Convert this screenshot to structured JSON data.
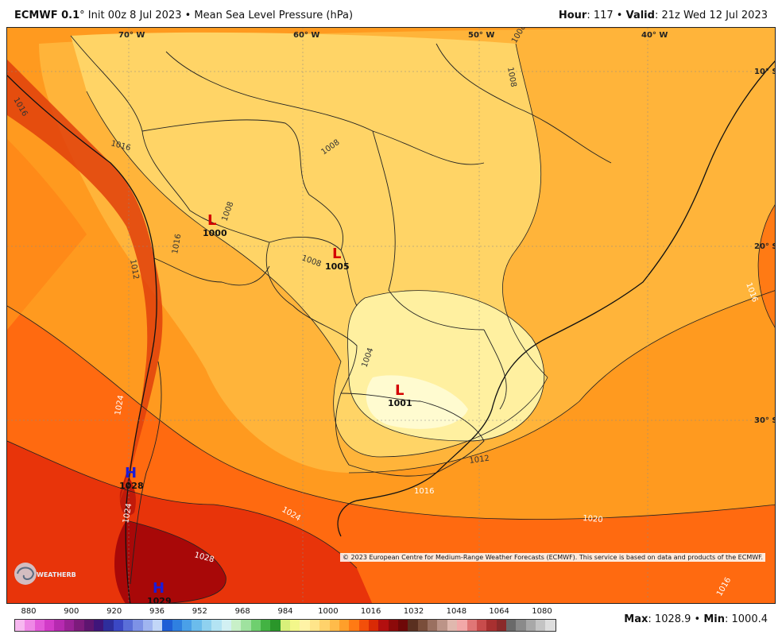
{
  "header": {
    "model": "ECMWF 0.1",
    "model_suffix": "° Init 00z 8 Jul 2023 • Mean Sea Level Pressure (hPa)",
    "hour_label": "Hour",
    "hour_value": ": 117 • ",
    "valid_label": "Valid",
    "valid_value": ": 21z Wed 12 Jul 2023"
  },
  "map": {
    "lon_labels": [
      "70° W",
      "60° W",
      "50° W",
      "40° W"
    ],
    "lat_labels": [
      "10° S",
      "20° S",
      "30° S"
    ],
    "isobar_labels": [
      "1008",
      "1008",
      "1016",
      "1016",
      "1012",
      "1016",
      "1008",
      "1004",
      "1012",
      "1016",
      "1016",
      "1020",
      "1024",
      "1024",
      "1024",
      "1028",
      "1016",
      "1008",
      "1008"
    ],
    "centers": [
      {
        "type": "L",
        "value": "1000"
      },
      {
        "type": "L",
        "value": "1005"
      },
      {
        "type": "L",
        "value": "1001"
      },
      {
        "type": "H",
        "value": "1028"
      },
      {
        "type": "H",
        "value": "1029"
      }
    ],
    "copyright": "© 2023 European Centre for Medium-Range Weather Forecasts (ECMWF). This service is based on data and products of the ECMWF."
  },
  "scale": {
    "ticks": [
      "880",
      "900",
      "920",
      "936",
      "952",
      "968",
      "984",
      "1000",
      "1016",
      "1032",
      "1048",
      "1064",
      "1080"
    ],
    "colors": [
      "#f7b8f0",
      "#ef88e6",
      "#e35ad9",
      "#d23bc8",
      "#b62ab0",
      "#9a2296",
      "#7d1b7c",
      "#5e1570",
      "#3f157a",
      "#2e2e9c",
      "#3b48c4",
      "#5a6fd8",
      "#7d92e6",
      "#a0b5f0",
      "#c2d6f7",
      "#1f5fd6",
      "#2f80e0",
      "#4aa0e8",
      "#6bbcec",
      "#8fd1ef",
      "#b3e3f3",
      "#d2f0f3",
      "#c8f0c8",
      "#9fe29f",
      "#6fcf6f",
      "#43b343",
      "#2a962a",
      "#d8f07a",
      "#f3f78a",
      "#fff3a6",
      "#ffe58a",
      "#ffd26b",
      "#ffbb4a",
      "#ff9f2a",
      "#ff7a14",
      "#f34f0a",
      "#d92a05",
      "#b30f0f",
      "#8c0a0a",
      "#6e0808",
      "#5a3020",
      "#7a4e3a",
      "#9a7060",
      "#bc9488",
      "#e0b8ae",
      "#f2a8a8",
      "#e07676",
      "#c84c4c",
      "#a83030",
      "#8a2a2a",
      "#6a6a6a",
      "#8a8a8a",
      "#a8a8a8",
      "#c4c4c4",
      "#dedede"
    ]
  },
  "footer": {
    "max_label": "Max",
    "max_value": ": 1028.9 • ",
    "min_label": "Min",
    "min_value": ": 1000.4"
  },
  "logo": {
    "text": "WEATHERBELL",
    "icon": "hurricane-swirl-icon"
  }
}
